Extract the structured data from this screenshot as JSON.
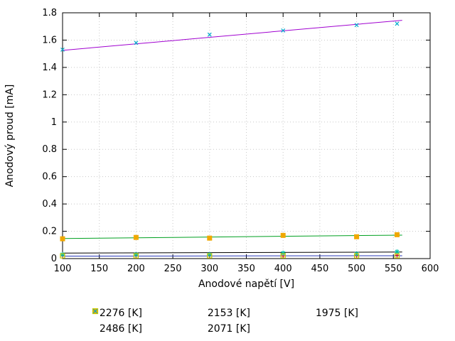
{
  "chart_data": {
    "type": "scatter",
    "title": "",
    "xlabel": "Anodové napětí [V]",
    "ylabel": "Anodový proud [mA]",
    "xlim": [
      100,
      600
    ],
    "ylim": [
      0,
      1.8
    ],
    "grid": true,
    "legend_position": "below",
    "xticks": [
      100,
      150,
      200,
      250,
      300,
      350,
      400,
      450,
      500,
      550,
      600
    ],
    "xtick_labels": [
      "100",
      "150",
      "200",
      "250",
      "300",
      "350",
      "400",
      "450",
      "500",
      "550",
      "600"
    ],
    "yticks": [
      0,
      0.2,
      0.4,
      0.6,
      0.8,
      1.0,
      1.2,
      1.4,
      1.6,
      1.8
    ],
    "ytick_labels": [
      "0",
      "0.2",
      "0.4",
      "0.6",
      "0.8",
      "1",
      "1.2",
      "1.4",
      "1.6",
      "1.8"
    ],
    "series": [
      {
        "name": "2276 [K]",
        "marker": "plus",
        "color": "#e01010",
        "x": [
          100,
          200,
          300,
          400,
          500,
          555
        ],
        "y": [
          0.02,
          0.02,
          0.02,
          0.02,
          0.02,
          0.025
        ]
      },
      {
        "name": "2486 [K]",
        "marker": "x",
        "color": "#00aacc",
        "x": [
          100,
          200,
          300,
          400,
          500,
          555
        ],
        "y": [
          1.53,
          1.58,
          1.64,
          1.67,
          1.71,
          1.72
        ]
      },
      {
        "name": "2153 [K]",
        "marker": "asterisk",
        "color": "#00c0a8",
        "x": [
          100,
          200,
          300,
          400,
          500,
          555
        ],
        "y": [
          0.03,
          0.03,
          0.03,
          0.04,
          0.035,
          0.05
        ]
      },
      {
        "name": "2071 [K]",
        "marker": "square-open",
        "color": "#c8c800",
        "x": [
          100,
          200,
          300,
          400,
          500,
          555
        ],
        "y": [
          0.02,
          0.02,
          0.02,
          0.02,
          0.02,
          0.02
        ]
      },
      {
        "name": "1975 [K]",
        "marker": "square-filled",
        "color": "#f0a800",
        "x": [
          100,
          200,
          300,
          400,
          500,
          555
        ],
        "y": [
          0.145,
          0.155,
          0.15,
          0.17,
          0.16,
          0.175
        ]
      }
    ],
    "fit_lines": [
      {
        "series": "2486 [K]",
        "color": "#a000d0",
        "x": [
          100,
          562
        ],
        "y": [
          1.525,
          1.745
        ]
      },
      {
        "series": "1975 [K]",
        "color": "#00a020",
        "x": [
          100,
          562
        ],
        "y": [
          0.147,
          0.172
        ]
      },
      {
        "series": "2153 [K]",
        "color": "#000000",
        "x": [
          100,
          562
        ],
        "y": [
          0.04,
          0.048
        ]
      },
      {
        "series": "2276 [K]",
        "color": "#2838b8",
        "x": [
          100,
          562
        ],
        "y": [
          0.018,
          0.021
        ]
      }
    ],
    "legend_rows": [
      [
        0,
        2,
        4
      ],
      [
        1,
        3
      ]
    ]
  },
  "style": {
    "grid_color": "#c8c8c8",
    "axis_color": "#000000",
    "tick_label_color": "#000000"
  }
}
